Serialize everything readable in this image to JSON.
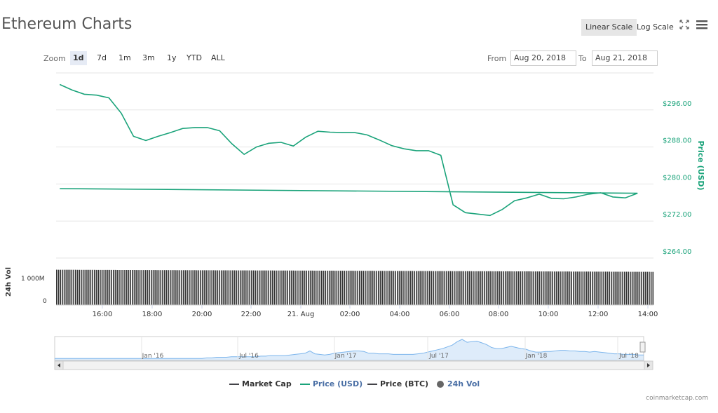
{
  "title": "Ethereum Charts",
  "toolbar": {
    "linear_label": "Linear Scale",
    "log_label": "Log Scale",
    "zoom_label": "Zoom",
    "zoom_options": [
      "1d",
      "7d",
      "1m",
      "3m",
      "1y",
      "YTD",
      "ALL"
    ],
    "active_zoom": "1d",
    "from_label": "From",
    "from_value": "Aug 20, 2018",
    "to_label": "To",
    "to_value": "Aug 21, 2018"
  },
  "icons": {
    "expand": "expand-icon",
    "menu": "hamburger-menu-icon"
  },
  "colors": {
    "price": "#1aa37a",
    "volume": "#333333",
    "navigator": "#7cb5ec",
    "grid": "#e6e6e6"
  },
  "chart_data": {
    "type": "line",
    "x_ticks": [
      "16:00",
      "18:00",
      "20:00",
      "22:00",
      "21. Aug",
      "02:00",
      "04:00",
      "06:00",
      "08:00",
      "10:00",
      "12:00",
      "14:00"
    ],
    "y_ticks": [
      "$264.00",
      "$272.00",
      "$280.00",
      "$288.00",
      "$296.00"
    ],
    "ylabel": "Price (USD)",
    "ylim": [
      264,
      304
    ],
    "scale": "linear",
    "grid": true,
    "series": [
      {
        "name": "Price (USD)",
        "x": [
          "14:15",
          "14:45",
          "15:15",
          "15:45",
          "16:15",
          "16:45",
          "17:15",
          "17:45",
          "18:15",
          "18:45",
          "19:15",
          "19:45",
          "20:15",
          "20:45",
          "21:15",
          "21:45",
          "22:15",
          "22:45",
          "23:15",
          "23:45",
          "00:15",
          "00:45",
          "01:15",
          "01:45",
          "02:15",
          "02:45",
          "03:15",
          "03:45",
          "04:15",
          "04:45",
          "05:15",
          "05:45",
          "06:15",
          "06:45",
          "07:15",
          "07:45",
          "08:15",
          "08:45",
          "09:15",
          "09:45",
          "10:15",
          "10:45",
          "11:15",
          "11:45",
          "12:15",
          "12:45",
          "13:15",
          "13:45",
          "14:15"
        ],
        "values": [
          301.5,
          300.3,
          299.4,
          299.2,
          298.6,
          295.3,
          290.3,
          289.4,
          290.3,
          291.1,
          292.0,
          292.2,
          292.2,
          291.5,
          288.7,
          286.4,
          288.0,
          288.8,
          289.0,
          288.2,
          290.1,
          291.4,
          291.2,
          291.1,
          291.1,
          290.6,
          289.5,
          288.3,
          287.6,
          287.2,
          287.2,
          286.2,
          275.5,
          273.8,
          273.5,
          273.2,
          274.5,
          276.4,
          277.0,
          277.8,
          276.9,
          276.8,
          277.2,
          277.8,
          278.1,
          277.2,
          277.0,
          278.0,
          279.0
        ]
      }
    ],
    "volume": {
      "label": "24h Vol",
      "y_ticks": [
        "0",
        "1 000M"
      ],
      "level_fraction": 0.95
    },
    "navigator": {
      "labels": [
        "Jan '16",
        "Jul '16",
        "Jan '17",
        "Jul '17",
        "Jan '18",
        "Jul '18"
      ],
      "values": [
        1,
        1,
        1,
        1,
        1,
        1,
        1,
        1,
        1,
        1,
        1,
        1,
        1,
        1,
        1,
        1,
        1,
        1,
        1,
        1,
        1,
        1,
        1,
        1,
        1,
        1,
        1,
        1,
        1,
        1,
        1,
        2,
        2,
        3,
        3,
        3,
        4,
        4,
        4,
        4,
        4,
        4,
        5,
        5,
        6,
        6,
        6,
        6,
        7,
        8,
        9,
        10,
        14,
        9,
        8,
        7,
        8,
        10,
        11,
        12,
        13,
        14,
        14,
        13,
        10,
        10,
        9,
        9,
        9,
        8,
        8,
        8,
        8,
        8,
        9,
        10,
        12,
        14,
        16,
        18,
        21,
        24,
        30,
        34,
        29,
        30,
        31,
        28,
        25,
        20,
        18,
        18,
        20,
        22,
        20,
        18,
        17,
        14,
        12,
        12,
        13,
        13,
        14,
        15,
        15,
        14,
        14,
        13,
        13,
        12,
        13,
        12,
        11,
        10,
        9,
        9,
        8,
        8,
        8,
        7,
        7
      ]
    },
    "legend": [
      {
        "name": "Market Cap",
        "color": "#434348"
      },
      {
        "name": "Price (USD)",
        "color": "#1aa37a"
      },
      {
        "name": "Price (BTC)",
        "color": "#434348"
      },
      {
        "name": "24h Vol",
        "color": "#666666"
      }
    ]
  },
  "credit": "coinmarketcap.com"
}
